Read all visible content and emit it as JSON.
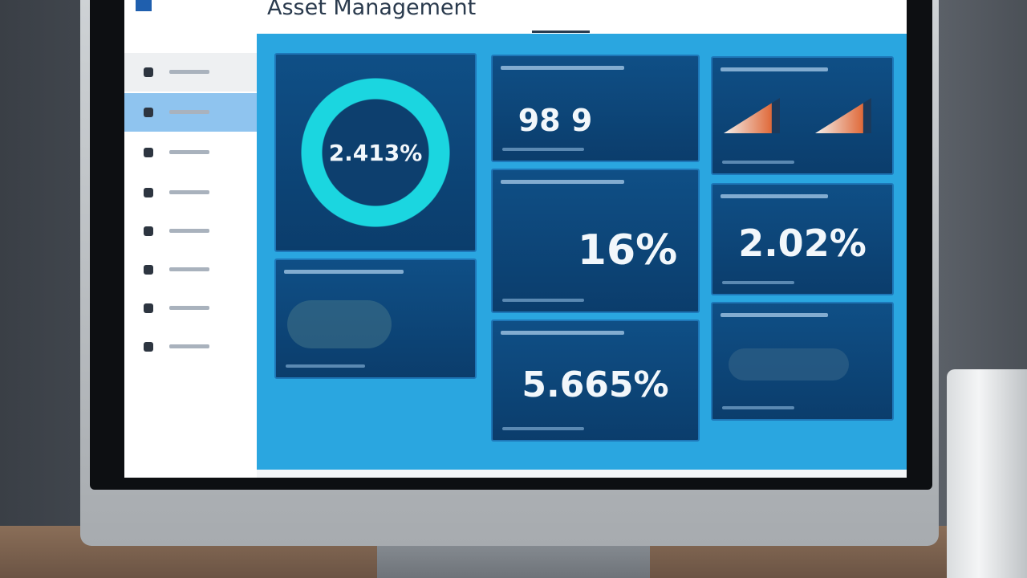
{
  "header": {
    "title": "Asset Management"
  },
  "cards": [
    {
      "value": "2.413%"
    },
    {
      "value": "98 9"
    },
    {
      "value": "16%"
    },
    {
      "value": "2.02%"
    },
    {
      "value": "5.665%"
    }
  ]
}
